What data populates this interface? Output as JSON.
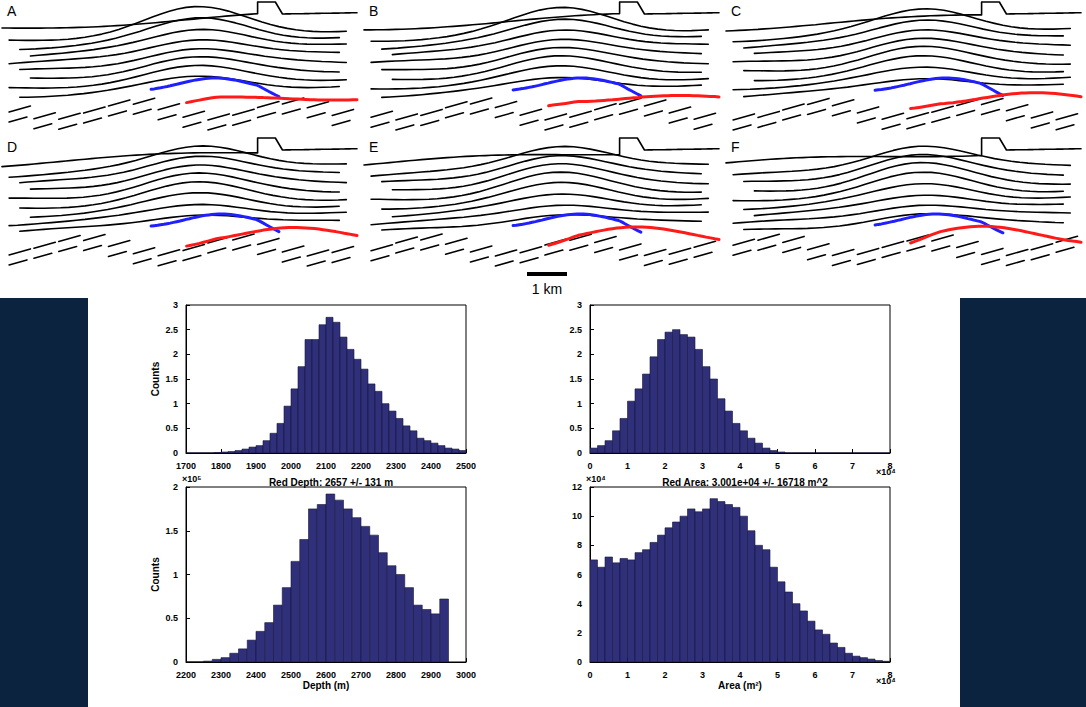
{
  "panels": {
    "labels": [
      "A",
      "B",
      "C",
      "D",
      "E",
      "F"
    ],
    "scale_bar_label": "1 km"
  },
  "chart_data": [
    {
      "type": "histogram",
      "ylabel": "Counts",
      "color": "#30307a",
      "bins": [
        1700,
        1720,
        1740,
        1760,
        1780,
        1800,
        1820,
        1840,
        1860,
        1880,
        1900,
        1920,
        1940,
        1960,
        1980,
        2000,
        2020,
        2040,
        2060,
        2080,
        2100,
        2120,
        2140,
        2160,
        2180,
        2200,
        2220,
        2240,
        2260,
        2280,
        2300,
        2320,
        2340,
        2360,
        2380,
        2400,
        2420,
        2440,
        2460,
        2480,
        2500
      ],
      "values": [
        0,
        0,
        0,
        0,
        0.01,
        0.02,
        0.03,
        0.05,
        0.08,
        0.12,
        0.15,
        0.25,
        0.4,
        0.6,
        0.95,
        1.3,
        1.75,
        2.3,
        2.3,
        2.6,
        2.75,
        2.65,
        2.35,
        2.1,
        1.9,
        1.7,
        1.4,
        1.25,
        1.0,
        0.85,
        0.7,
        0.55,
        0.45,
        0.3,
        0.25,
        0.2,
        0.15,
        0.1,
        0.08,
        0.05
      ],
      "xlim": [
        1700,
        2500
      ],
      "xticks": [
        1700,
        1800,
        1900,
        2000,
        2100,
        2200,
        2300,
        2400,
        2500
      ],
      "ylim": [
        0,
        3
      ],
      "yticks": [
        0,
        0.5,
        1,
        1.5,
        2,
        2.5,
        3
      ]
    },
    {
      "type": "histogram",
      "color": "#30307a",
      "x_multiplier": "×10⁴",
      "bins": [
        0,
        0.2,
        0.4,
        0.6,
        0.8,
        1,
        1.2,
        1.4,
        1.6,
        1.8,
        2,
        2.2,
        2.4,
        2.6,
        2.8,
        3,
        3.2,
        3.4,
        3.6,
        3.8,
        4,
        4.2,
        4.4,
        4.6,
        4.8,
        5,
        5.2,
        5.4,
        5.6,
        5.8,
        6,
        6.2,
        6.4,
        6.6,
        6.8,
        7,
        7.2,
        7.4,
        7.6,
        7.8,
        8
      ],
      "values": [
        0.1,
        0.15,
        0.25,
        0.45,
        0.7,
        1.05,
        1.3,
        1.6,
        1.95,
        2.3,
        2.45,
        2.5,
        2.4,
        2.35,
        2.1,
        1.75,
        1.5,
        1.1,
        0.85,
        0.6,
        0.45,
        0.3,
        0.2,
        0.1,
        0.05,
        0.02,
        0,
        0,
        0,
        0,
        0,
        0,
        0,
        0,
        0,
        0,
        0,
        0,
        0,
        0
      ],
      "xlim": [
        0,
        8
      ],
      "xticks": [
        0,
        1,
        2,
        3,
        4,
        5,
        6,
        7,
        8
      ],
      "ylim": [
        0,
        3
      ],
      "yticks": [
        0,
        0.5,
        1,
        1.5,
        2,
        2.5,
        3
      ]
    },
    {
      "type": "histogram",
      "title": "Red Depth: 2657 +/- 131 m",
      "xlabel": "Depth (m)",
      "ylabel": "Counts",
      "color": "#30307a",
      "y_multiplier": "×10⁵",
      "bins": [
        2200,
        2225,
        2250,
        2275,
        2300,
        2325,
        2350,
        2375,
        2400,
        2425,
        2450,
        2475,
        2500,
        2525,
        2550,
        2575,
        2600,
        2625,
        2650,
        2675,
        2700,
        2725,
        2750,
        2775,
        2800,
        2825,
        2850,
        2875,
        2900,
        2925,
        2950
      ],
      "values": [
        0,
        0,
        0.01,
        0.03,
        0.05,
        0.1,
        0.15,
        0.25,
        0.35,
        0.45,
        0.65,
        0.85,
        1.15,
        1.4,
        1.75,
        1.8,
        1.92,
        1.85,
        1.75,
        1.65,
        1.55,
        1.45,
        1.25,
        1.1,
        1.0,
        0.85,
        0.65,
        0.6,
        0.55,
        0.72
      ],
      "xlim": [
        2200,
        3000
      ],
      "xticks": [
        2200,
        2300,
        2400,
        2500,
        2600,
        2700,
        2800,
        2900,
        3000
      ],
      "ylim": [
        0,
        2
      ],
      "yticks": [
        0,
        0.5,
        1,
        1.5,
        2
      ]
    },
    {
      "type": "histogram",
      "title": "Red Area: 3.001e+04 +/- 16718 m^2",
      "xlabel": "Area (m²)",
      "color": "#30307a",
      "x_multiplier": "×10⁴",
      "y_multiplier": "×10⁴",
      "bins": [
        0,
        0.2,
        0.4,
        0.6,
        0.8,
        1,
        1.2,
        1.4,
        1.6,
        1.8,
        2,
        2.2,
        2.4,
        2.6,
        2.8,
        3,
        3.2,
        3.4,
        3.6,
        3.8,
        4,
        4.2,
        4.4,
        4.6,
        4.8,
        5,
        5.2,
        5.4,
        5.6,
        5.8,
        6,
        6.2,
        6.4,
        6.6,
        6.8,
        7,
        7.2,
        7.4,
        7.6,
        7.8,
        8
      ],
      "values": [
        7.0,
        6.5,
        7.2,
        6.8,
        7.1,
        7.0,
        7.5,
        7.7,
        8.2,
        8.7,
        9.2,
        9.6,
        10.0,
        10.5,
        10.3,
        10.5,
        11.2,
        11.0,
        10.8,
        10.6,
        10.0,
        9.0,
        8.0,
        7.7,
        6.5,
        5.5,
        4.8,
        4.0,
        3.5,
        2.8,
        2.2,
        1.9,
        1.3,
        1.0,
        0.6,
        0.4,
        0.3,
        0.2,
        0.1,
        0.05
      ],
      "xlim": [
        0,
        8
      ],
      "xticks": [
        0,
        1,
        2,
        3,
        4,
        5,
        6,
        7,
        8
      ],
      "ylim": [
        0,
        12
      ],
      "yticks": [
        0,
        2,
        4,
        6,
        8,
        10,
        12
      ]
    }
  ]
}
